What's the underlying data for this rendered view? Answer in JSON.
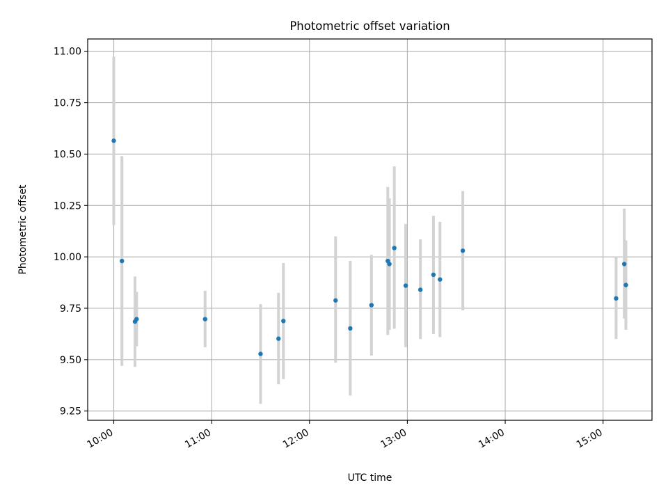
{
  "chart_data": {
    "type": "scatter",
    "title": "Photometric offset variation",
    "xlabel": "UTC time",
    "ylabel": "Photometric offset",
    "x_unit": "UTC time (HH:MM)",
    "xlim": [
      "09:44",
      "15:30"
    ],
    "ylim": [
      9.205,
      11.06
    ],
    "x_ticks": [
      "10:00",
      "11:00",
      "12:00",
      "13:00",
      "14:00",
      "15:00"
    ],
    "y_ticks": [
      9.25,
      9.5,
      9.75,
      10.0,
      10.25,
      10.5,
      10.75,
      11.0
    ],
    "y_tick_labels": [
      "9.25",
      "9.50",
      "9.75",
      "10.00",
      "10.25",
      "10.50",
      "10.75",
      "11.00"
    ],
    "grid": true,
    "colors": {
      "point": "#1f77b4",
      "errorbar": "#d3d3d3",
      "grid": "#b0b0b0"
    },
    "points": [
      {
        "x": "10:00",
        "y": 10.565,
        "ylo": 10.155,
        "yhi": 10.975
      },
      {
        "x": "10:05",
        "y": 9.98,
        "ylo": 9.47,
        "yhi": 10.49
      },
      {
        "x": "10:13",
        "y": 9.685,
        "ylo": 9.465,
        "yhi": 9.905
      },
      {
        "x": "10:14",
        "y": 9.697,
        "ylo": 9.565,
        "yhi": 9.83
      },
      {
        "x": "10:56",
        "y": 9.697,
        "ylo": 9.56,
        "yhi": 9.835
      },
      {
        "x": "11:30",
        "y": 9.528,
        "ylo": 9.285,
        "yhi": 9.77
      },
      {
        "x": "11:41",
        "y": 9.602,
        "ylo": 9.38,
        "yhi": 9.825
      },
      {
        "x": "11:44",
        "y": 9.688,
        "ylo": 9.405,
        "yhi": 9.97
      },
      {
        "x": "12:16",
        "y": 9.788,
        "ylo": 9.485,
        "yhi": 10.1
      },
      {
        "x": "12:25",
        "y": 9.652,
        "ylo": 9.325,
        "yhi": 9.98
      },
      {
        "x": "12:38",
        "y": 9.765,
        "ylo": 9.52,
        "yhi": 10.01
      },
      {
        "x": "12:48",
        "y": 9.98,
        "ylo": 9.62,
        "yhi": 10.34
      },
      {
        "x": "12:49",
        "y": 9.965,
        "ylo": 9.645,
        "yhi": 10.285
      },
      {
        "x": "12:52",
        "y": 10.043,
        "ylo": 9.65,
        "yhi": 10.44
      },
      {
        "x": "12:59",
        "y": 9.86,
        "ylo": 9.56,
        "yhi": 10.16
      },
      {
        "x": "13:08",
        "y": 9.84,
        "ylo": 9.6,
        "yhi": 10.085
      },
      {
        "x": "13:16",
        "y": 9.913,
        "ylo": 9.625,
        "yhi": 10.2
      },
      {
        "x": "13:20",
        "y": 9.89,
        "ylo": 9.61,
        "yhi": 10.17
      },
      {
        "x": "13:34",
        "y": 10.03,
        "ylo": 9.74,
        "yhi": 10.32
      },
      {
        "x": "15:08",
        "y": 9.798,
        "ylo": 9.6,
        "yhi": 10.0
      },
      {
        "x": "15:13",
        "y": 9.965,
        "ylo": 9.7,
        "yhi": 10.235
      },
      {
        "x": "15:14",
        "y": 9.863,
        "ylo": 9.645,
        "yhi": 10.08
      }
    ]
  }
}
